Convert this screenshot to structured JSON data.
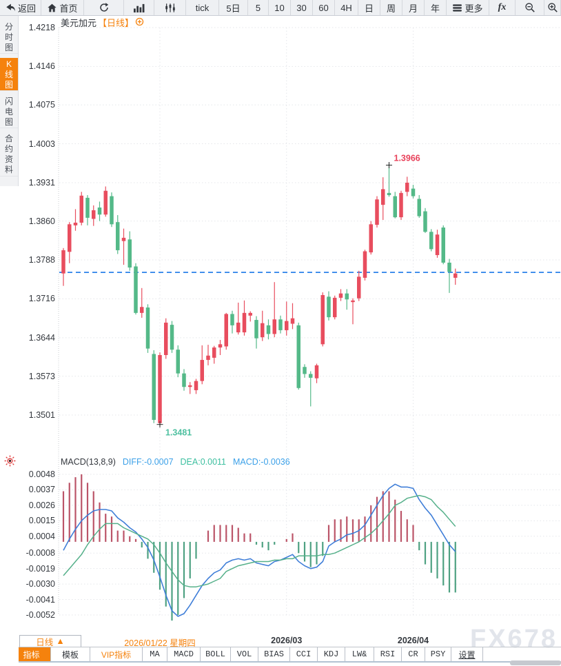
{
  "toolbar": {
    "items": [
      {
        "id": "back",
        "label": "返回",
        "icon": "back-arrow-icon"
      },
      {
        "id": "home",
        "label": "首页",
        "icon": "home-icon"
      },
      {
        "id": "refresh",
        "icon": "refresh-icon"
      },
      {
        "id": "line-chart",
        "icon": "bar-chart-icon"
      },
      {
        "id": "kline",
        "icon": "candles-icon"
      },
      {
        "id": "tick",
        "label": "tick"
      },
      {
        "id": "period-5d",
        "label": "5日"
      },
      {
        "id": "period-5",
        "label": "5"
      },
      {
        "id": "period-10",
        "label": "10"
      },
      {
        "id": "period-30",
        "label": "30"
      },
      {
        "id": "period-60",
        "label": "60"
      },
      {
        "id": "period-4h",
        "label": "4H"
      },
      {
        "id": "period-day",
        "label": "日"
      },
      {
        "id": "period-week",
        "label": "周"
      },
      {
        "id": "period-month",
        "label": "月"
      },
      {
        "id": "period-year",
        "label": "年"
      },
      {
        "id": "more",
        "label": "更多",
        "icon": "menu-icon"
      },
      {
        "id": "indicators-fx",
        "label": "fx"
      },
      {
        "id": "zoom-out",
        "icon": "zoom-out-icon"
      },
      {
        "id": "zoom-in",
        "icon": "zoom-in-icon"
      }
    ]
  },
  "sidebar": {
    "items": [
      {
        "id": "time-chart",
        "label": "分时图",
        "active": false
      },
      {
        "id": "kline-chart",
        "label": "K线图",
        "active": true
      },
      {
        "id": "lightning-chart",
        "label": "闪电图",
        "active": false
      },
      {
        "id": "contract-info",
        "label": "合约资料",
        "active": false
      }
    ]
  },
  "chart_header": {
    "symbol": "美元加元",
    "period_tag": "【日线】"
  },
  "macd_header": {
    "name": "MACD(13,8,9)",
    "diff_label": "DIFF:-0.0007",
    "dea_label": "DEA:0.0011",
    "macd_label": "MACD:-0.0036"
  },
  "period_selector": {
    "label": "日线",
    "arrow": "▲"
  },
  "bottom_tabs": {
    "items": [
      {
        "id": "indicators",
        "label": "指标",
        "active": true
      },
      {
        "id": "templates",
        "label": "模板"
      },
      {
        "id": "vip-indicators",
        "label": "VIP指标",
        "highlight": true
      },
      {
        "id": "ma",
        "label": "MA"
      },
      {
        "id": "macd",
        "label": "MACD"
      },
      {
        "id": "boll",
        "label": "BOLL"
      },
      {
        "id": "vol",
        "label": "VOL"
      },
      {
        "id": "bias",
        "label": "BIAS"
      },
      {
        "id": "cci",
        "label": "CCI"
      },
      {
        "id": "kdj",
        "label": "KDJ"
      },
      {
        "id": "lw",
        "label": "LW&"
      },
      {
        "id": "rsi",
        "label": "RSI"
      },
      {
        "id": "cr",
        "label": "CR"
      },
      {
        "id": "psy",
        "label": "PSY"
      },
      {
        "id": "settings",
        "label": "设置",
        "underline": true
      }
    ]
  },
  "watermark": "FX678",
  "colors": {
    "accent_orange": "#f5820d",
    "up_red": "#e84d5e",
    "down_green": "#54b988",
    "macd_bar_up": "#bb5468",
    "macd_bar_down": "#4ea182",
    "diff_line": "#3f7ed8",
    "dea_line": "#55b08a",
    "price_line_dashed": "#1877e8",
    "high_label": "#e8415a",
    "low_label": "#4ec0a0",
    "diff_text": "#3ba0e8",
    "dea_text": "#3cbf9f",
    "macd_text": "#3ba0e8",
    "grid": "#e4e6ea",
    "axis_text": "#33373d"
  },
  "chart_data": [
    {
      "type": "candlestick",
      "title": "美元加元 日线",
      "y_ticks": [
        "1.4218",
        "1.4146",
        "1.4075",
        "1.4003",
        "1.3931",
        "1.3860",
        "1.3788",
        "1.3716",
        "1.3644",
        "1.3573",
        "1.3501"
      ],
      "ylim": [
        1.3465,
        1.424
      ],
      "grid": true,
      "last_price_line": 1.3765,
      "annotations": {
        "high": {
          "index": 54,
          "price": 1.3966,
          "label": "1.3966"
        },
        "low": {
          "index": 16,
          "price": 1.3481,
          "label": "1.3481"
        }
      },
      "x_labels": [
        {
          "text": "2026/01/22 星期四",
          "index": 16,
          "highlight": true
        },
        {
          "text": "2026/03",
          "index": 37,
          "highlight": false
        },
        {
          "text": "2026/04",
          "index": 58,
          "highlight": false
        }
      ],
      "ohlc": [
        [
          1.3763,
          1.381,
          1.374,
          1.3806
        ],
        [
          1.3803,
          1.3858,
          1.3782,
          1.3854
        ],
        [
          1.3852,
          1.3882,
          1.3842,
          1.3857
        ],
        [
          1.3857,
          1.3914,
          1.3852,
          1.3907
        ],
        [
          1.3903,
          1.3908,
          1.3852,
          1.3866
        ],
        [
          1.3864,
          1.3889,
          1.3851,
          1.388
        ],
        [
          1.3885,
          1.3896,
          1.386,
          1.3872
        ],
        [
          1.3872,
          1.3924,
          1.3868,
          1.3916
        ],
        [
          1.3906,
          1.3913,
          1.3849,
          1.3854
        ],
        [
          1.3858,
          1.3871,
          1.3799,
          1.3806
        ],
        [
          1.3823,
          1.3846,
          1.3779,
          1.3829
        ],
        [
          1.3826,
          1.3841,
          1.3768,
          1.3774
        ],
        [
          1.3776,
          1.3782,
          1.3687,
          1.369
        ],
        [
          1.369,
          1.3736,
          1.3681,
          1.3701
        ],
        [
          1.37,
          1.3706,
          1.3616,
          1.3624
        ],
        [
          1.3614,
          1.3621,
          1.3486,
          1.3492
        ],
        [
          1.3486,
          1.3617,
          1.3481,
          1.3612
        ],
        [
          1.3612,
          1.368,
          1.3605,
          1.3672
        ],
        [
          1.3668,
          1.3675,
          1.3616,
          1.3622
        ],
        [
          1.3622,
          1.363,
          1.3571,
          1.3578
        ],
        [
          1.3578,
          1.3586,
          1.3546,
          1.3553
        ],
        [
          1.3553,
          1.3562,
          1.354,
          1.3556
        ],
        [
          1.3547,
          1.3568,
          1.354,
          1.3564
        ],
        [
          1.3564,
          1.363,
          1.3558,
          1.3603
        ],
        [
          1.3603,
          1.3631,
          1.3593,
          1.3611
        ],
        [
          1.3607,
          1.3629,
          1.3596,
          1.3626
        ],
        [
          1.3626,
          1.364,
          1.3612,
          1.3632
        ],
        [
          1.3628,
          1.369,
          1.3622,
          1.3688
        ],
        [
          1.3688,
          1.3694,
          1.3652,
          1.3667
        ],
        [
          1.3654,
          1.3709,
          1.365,
          1.3672
        ],
        [
          1.3654,
          1.3713,
          1.3648,
          1.369
        ],
        [
          1.3685,
          1.3693,
          1.3674,
          1.369
        ],
        [
          1.3677,
          1.3684,
          1.3624,
          1.3643
        ],
        [
          1.3645,
          1.3694,
          1.3638,
          1.3671
        ],
        [
          1.3667,
          1.3678,
          1.3641,
          1.3651
        ],
        [
          1.3651,
          1.3747,
          1.3645,
          1.3678
        ],
        [
          1.3678,
          1.3685,
          1.3652,
          1.3658
        ],
        [
          1.3658,
          1.3711,
          1.3648,
          1.3675
        ],
        [
          1.367,
          1.3708,
          1.366,
          1.368
        ],
        [
          1.3667,
          1.3672,
          1.3548,
          1.3551
        ],
        [
          1.359,
          1.3595,
          1.357,
          1.3577
        ],
        [
          1.3577,
          1.3582,
          1.3517,
          1.357
        ],
        [
          1.3569,
          1.3596,
          1.356,
          1.3593
        ],
        [
          1.3632,
          1.3728,
          1.3628,
          1.3723
        ],
        [
          1.372,
          1.373,
          1.3676,
          1.3682
        ],
        [
          1.3682,
          1.3722,
          1.3678,
          1.3718
        ],
        [
          1.3718,
          1.3734,
          1.3712,
          1.3726
        ],
        [
          1.3726,
          1.3734,
          1.3696,
          1.3715
        ],
        [
          1.371,
          1.3717,
          1.3669,
          1.3713
        ],
        [
          1.3717,
          1.3768,
          1.3712,
          1.3757
        ],
        [
          1.3755,
          1.3807,
          1.375,
          1.3804
        ],
        [
          1.3802,
          1.386,
          1.3798,
          1.3854
        ],
        [
          1.3853,
          1.3906,
          1.3848,
          1.39
        ],
        [
          1.389,
          1.3941,
          1.3862,
          1.3919
        ],
        [
          1.3912,
          1.3966,
          1.3905,
          1.3908
        ],
        [
          1.3906,
          1.3914,
          1.3865,
          1.3867
        ],
        [
          1.3867,
          1.3916,
          1.3862,
          1.3912
        ],
        [
          1.3914,
          1.3942,
          1.3906,
          1.3931
        ],
        [
          1.392,
          1.3927,
          1.3902,
          1.3906
        ],
        [
          1.3901,
          1.3908,
          1.3866,
          1.3869
        ],
        [
          1.3878,
          1.3884,
          1.3838,
          1.384
        ],
        [
          1.384,
          1.3845,
          1.3804,
          1.3808
        ],
        [
          1.3797,
          1.3844,
          1.3792,
          1.3835
        ],
        [
          1.3848,
          1.3852,
          1.378,
          1.3783
        ],
        [
          1.3783,
          1.379,
          1.3727,
          1.3766
        ],
        [
          1.3755,
          1.3772,
          1.3742,
          1.3763
        ]
      ]
    },
    {
      "type": "macd",
      "name": "MACD(13,8,9)",
      "params": [
        13,
        8,
        9
      ],
      "y_ticks": [
        "0.0048",
        "0.0037",
        "0.0026",
        "0.0015",
        "0.0004",
        "-0.0008",
        "-0.0019",
        "-0.0030",
        "-0.0041",
        "-0.0052"
      ],
      "series": [
        {
          "name": "DIFF",
          "values": [
            -0.0006,
            0.0002,
            0.0009,
            0.0015,
            0.0019,
            0.0022,
            0.0023,
            0.0023,
            0.0022,
            0.0017,
            0.0014,
            0.001,
            0.0007,
            0.0002,
            -0.0004,
            -0.0013,
            -0.0025,
            -0.0038,
            -0.0049,
            -0.0053,
            -0.0051,
            -0.0045,
            -0.0038,
            -0.0031,
            -0.0026,
            -0.0022,
            -0.002,
            -0.0015,
            -0.0013,
            -0.0012,
            -0.0013,
            -0.0012,
            -0.0015,
            -0.0016,
            -0.0017,
            -0.0014,
            -0.0013,
            -0.0011,
            -0.0009,
            -0.0014,
            -0.0017,
            -0.0019,
            -0.0018,
            -0.0014,
            -0.0003,
            0.0,
            0.0002,
            0.0005,
            0.0006,
            0.0008,
            0.0012,
            0.0019,
            0.0026,
            0.0033,
            0.0038,
            0.0041,
            0.0039,
            0.0039,
            0.0038,
            0.003,
            0.0024,
            0.0019,
            0.0012,
            0.0005,
            -0.0002,
            -0.0007
          ]
        },
        {
          "name": "DEA",
          "values": [
            -0.0024,
            -0.0019,
            -0.0014,
            -0.0009,
            -0.0002,
            0.0004,
            0.0009,
            0.0013,
            0.0013,
            0.0013,
            0.001,
            0.0008,
            0.0006,
            0.0004,
            0.0002,
            -0.0002,
            -0.0008,
            -0.0015,
            -0.0021,
            -0.0027,
            -0.0031,
            -0.0032,
            -0.0032,
            -0.0031,
            -0.003,
            -0.0028,
            -0.0026,
            -0.0021,
            -0.0019,
            -0.0017,
            -0.0016,
            -0.0015,
            -0.0014,
            -0.0014,
            -0.0014,
            -0.0013,
            -0.0013,
            -0.0012,
            -0.0012,
            -0.001,
            -0.001,
            -0.001,
            -0.001,
            -0.0009,
            -0.0009,
            -0.0008,
            -0.0006,
            -0.0004,
            -0.0002,
            0.0,
            0.0003,
            0.0006,
            0.001,
            0.0015,
            0.002,
            0.0026,
            0.0028,
            0.0031,
            0.0032,
            0.0033,
            0.0032,
            0.003,
            0.0025,
            0.0021,
            0.0016,
            0.0011
          ]
        }
      ],
      "histogram": [
        0.0036,
        0.0042,
        0.0046,
        0.0048,
        0.0042,
        0.0036,
        0.0028,
        0.002,
        0.0018,
        0.0008,
        0.0008,
        0.0004,
        0.0002,
        -0.0004,
        -0.0012,
        -0.0022,
        -0.0034,
        -0.0046,
        -0.0056,
        -0.0052,
        -0.004,
        -0.0026,
        -0.0012,
        0.0,
        0.0008,
        0.0012,
        0.0012,
        0.0012,
        0.0012,
        0.001,
        0.0006,
        0.0006,
        -0.0002,
        -0.0004,
        -0.0006,
        -0.0002,
        0.0,
        0.0002,
        0.0006,
        -0.0008,
        -0.0014,
        -0.0018,
        -0.0016,
        -0.001,
        0.0012,
        0.0016,
        0.0016,
        0.0018,
        0.0016,
        0.0016,
        0.0018,
        0.0026,
        0.0032,
        0.0036,
        0.0036,
        0.003,
        0.0022,
        0.0016,
        0.0012,
        -0.0006,
        -0.0016,
        -0.0022,
        -0.0026,
        -0.0031,
        -0.0036,
        -0.0036
      ]
    }
  ]
}
